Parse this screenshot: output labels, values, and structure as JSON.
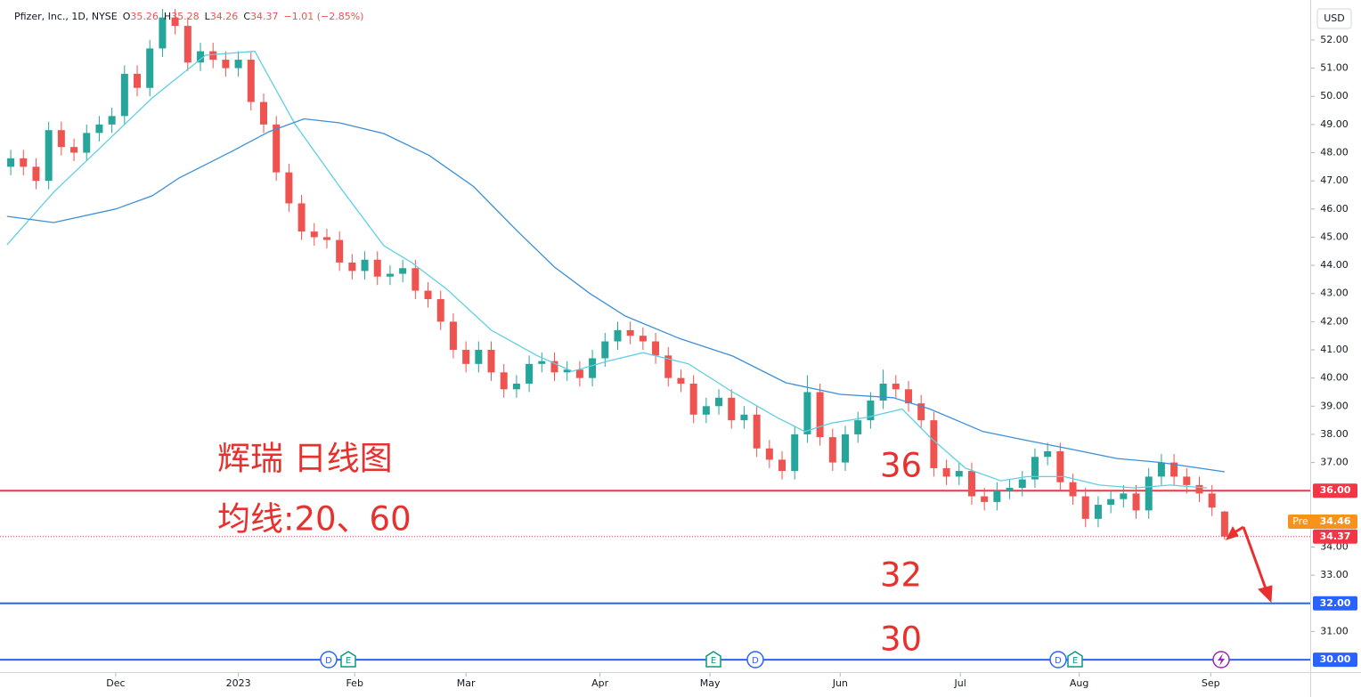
{
  "chart_data": {
    "type": "candlestick",
    "title": "Pfizer, Inc., 1D, NYSE",
    "ohlc_labels": [
      "O",
      "H",
      "L",
      "C"
    ],
    "change_label": "−1.01 (−2.85%)",
    "currency": "USD",
    "up_color": "#26a69a",
    "down_color": "#ef5350",
    "open": [
      47.5,
      47.8,
      47.5,
      47.0,
      48.8,
      48.2,
      48.0,
      48.7,
      49.0,
      49.3,
      50.8,
      50.3,
      51.7,
      52.8,
      52.5,
      51.2,
      51.6,
      51.3,
      51.0,
      51.3,
      49.8,
      49.0,
      47.3,
      46.2,
      45.2,
      45.0,
      44.9,
      44.1,
      43.8,
      44.2,
      43.6,
      43.7,
      43.9,
      43.1,
      42.8,
      42.0,
      41.0,
      40.5,
      41.0,
      40.2,
      39.6,
      39.8,
      40.5,
      40.6,
      40.2,
      40.3,
      40.0,
      40.7,
      41.3,
      41.7,
      41.5,
      41.3,
      40.8,
      40.0,
      39.8,
      38.7,
      39.0,
      39.3,
      38.5,
      38.7,
      37.5,
      37.1,
      36.7,
      38.0,
      39.5,
      37.9,
      37.0,
      38.0,
      38.5,
      39.2,
      39.8,
      39.6,
      39.1,
      38.5,
      36.8,
      36.5,
      36.7,
      35.8,
      35.6,
      36.0,
      36.1,
      36.4,
      37.2,
      37.4,
      36.3,
      35.8,
      35.0,
      35.5,
      35.7,
      35.9,
      35.3,
      36.5,
      37.0,
      36.5,
      36.2,
      35.9,
      35.26
    ],
    "high": [
      48.1,
      48.1,
      47.8,
      49.1,
      49.1,
      48.5,
      49.0,
      49.3,
      49.6,
      51.1,
      51.1,
      52.0,
      53.1,
      53.1,
      52.8,
      51.9,
      51.9,
      51.6,
      51.6,
      51.6,
      50.1,
      49.3,
      47.6,
      46.5,
      45.5,
      45.3,
      45.2,
      44.4,
      44.5,
      44.5,
      44.0,
      44.2,
      44.2,
      43.4,
      43.1,
      42.3,
      41.3,
      41.3,
      41.3,
      40.5,
      40.1,
      40.8,
      40.9,
      40.9,
      40.6,
      40.6,
      41.0,
      41.6,
      42.0,
      42.0,
      41.8,
      41.6,
      41.1,
      40.3,
      40.1,
      39.3,
      39.6,
      39.6,
      39.0,
      39.0,
      37.8,
      37.4,
      38.3,
      40.1,
      39.8,
      38.2,
      38.3,
      38.8,
      39.5,
      40.3,
      40.1,
      39.9,
      39.4,
      38.8,
      37.1,
      37.0,
      37.0,
      36.1,
      36.3,
      36.4,
      36.7,
      37.5,
      37.7,
      37.7,
      36.6,
      36.1,
      35.8,
      36.0,
      36.2,
      36.2,
      36.8,
      37.3,
      37.3,
      36.8,
      36.5,
      36.2,
      35.28
    ],
    "low": [
      47.2,
      47.2,
      46.7,
      46.7,
      47.9,
      47.7,
      47.7,
      48.4,
      48.7,
      49.0,
      50.0,
      50.0,
      51.4,
      52.2,
      50.9,
      50.9,
      51.0,
      50.7,
      50.7,
      49.5,
      48.7,
      47.0,
      45.9,
      44.9,
      44.7,
      44.6,
      43.8,
      43.5,
      43.5,
      43.3,
      43.3,
      43.4,
      42.8,
      42.5,
      41.7,
      40.7,
      40.2,
      40.2,
      39.9,
      39.3,
      39.3,
      39.5,
      40.2,
      39.9,
      39.9,
      39.7,
      39.7,
      40.4,
      41.0,
      41.2,
      41.0,
      40.5,
      39.7,
      39.5,
      38.4,
      38.4,
      38.7,
      38.2,
      38.2,
      37.2,
      36.8,
      36.4,
      36.4,
      37.7,
      37.6,
      36.7,
      36.7,
      37.7,
      38.2,
      38.9,
      39.3,
      38.8,
      38.2,
      36.5,
      36.2,
      36.2,
      35.5,
      35.3,
      35.3,
      35.7,
      35.8,
      36.1,
      36.9,
      36.0,
      35.5,
      34.7,
      34.7,
      35.2,
      35.4,
      35.0,
      35.0,
      36.2,
      36.2,
      35.9,
      35.6,
      35.1,
      34.26
    ],
    "close": [
      47.8,
      47.5,
      47.0,
      48.8,
      48.2,
      48.0,
      48.7,
      49.0,
      49.3,
      50.8,
      50.3,
      51.7,
      52.8,
      52.5,
      51.2,
      51.6,
      51.3,
      51.0,
      51.3,
      49.8,
      49.0,
      47.3,
      46.2,
      45.2,
      45.0,
      44.9,
      44.1,
      43.8,
      44.2,
      43.6,
      43.7,
      43.9,
      43.1,
      42.8,
      42.0,
      41.0,
      40.5,
      41.0,
      40.2,
      39.6,
      39.8,
      40.5,
      40.6,
      40.2,
      40.3,
      40.0,
      40.7,
      41.3,
      41.7,
      41.5,
      41.3,
      40.8,
      40.0,
      39.8,
      38.7,
      39.0,
      39.3,
      38.5,
      38.7,
      37.5,
      37.1,
      36.7,
      38.0,
      39.5,
      37.9,
      37.0,
      38.0,
      38.5,
      39.2,
      39.8,
      39.6,
      39.1,
      38.5,
      36.8,
      36.5,
      36.7,
      35.8,
      35.6,
      36.0,
      36.1,
      36.4,
      37.2,
      37.4,
      36.3,
      35.8,
      35.0,
      35.5,
      35.7,
      35.9,
      35.3,
      36.5,
      37.0,
      36.5,
      36.2,
      35.9,
      35.4,
      34.37
    ],
    "moving_averages": [
      {
        "color": "#5fcfe4",
        "x": [
          -0.3,
          3.4,
          7.6,
          11.2,
          15.4,
          19.3,
          20.4,
          22.5,
          26.0,
          29.5,
          31.7,
          34.5,
          38.0,
          41.6,
          44.4,
          47.2,
          50.0,
          53.6,
          57.1,
          60.6,
          62.8,
          64.9,
          67.7,
          70.5,
          72.7,
          75.5,
          78.3,
          80.4,
          83.3,
          86.1,
          88.9,
          91.7,
          94.6
        ],
        "values": [
          44.73,
          46.6,
          48.4,
          49.95,
          51.46,
          51.6,
          50.7,
          49.0,
          46.8,
          44.7,
          44.1,
          43.15,
          41.7,
          40.8,
          40.24,
          40.6,
          40.9,
          40.5,
          39.5,
          38.6,
          38.1,
          38.4,
          38.6,
          38.9,
          37.9,
          36.8,
          36.35,
          36.5,
          36.5,
          36.2,
          36.1,
          36.2,
          36.1
        ]
      },
      {
        "color": "#3b8fd9",
        "x": [
          -0.3,
          3.4,
          8.3,
          11.2,
          13.3,
          17.5,
          20.4,
          23.2,
          26.0,
          29.5,
          33.1,
          36.6,
          40.1,
          43.0,
          45.8,
          48.6,
          52.9,
          57.1,
          61.3,
          65.6,
          69.8,
          72.7,
          76.9,
          80.4,
          84.0,
          87.5,
          91.0,
          96.0
        ],
        "values": [
          45.74,
          45.52,
          46.0,
          46.47,
          47.1,
          48.05,
          48.74,
          49.2,
          49.06,
          48.68,
          47.9,
          46.8,
          45.2,
          43.94,
          43.0,
          42.2,
          41.4,
          40.78,
          39.83,
          39.42,
          39.3,
          38.9,
          38.1,
          37.78,
          37.46,
          37.14,
          37.0,
          36.67
        ]
      }
    ],
    "hlines": [
      {
        "value": 36,
        "label": "36.00",
        "color": "#f23645"
      },
      {
        "value": 32,
        "label": "32.00",
        "color": "#2962ff"
      },
      {
        "value": 30,
        "label": "30.00",
        "color": "#2962ff"
      }
    ],
    "last_price": 34.37,
    "last_color": "#f23645",
    "pre_label": "Pre",
    "pre_price": 34.46,
    "pre_color": "#f7931a",
    "annotations": [
      "辉瑞 日线图",
      "均线:20、60",
      "36",
      "32",
      "30"
    ],
    "annotation_color": "#e8312f",
    "events": [
      "D",
      "E",
      "E",
      "D",
      "D",
      "E"
    ],
    "xlim": [
      -0.85,
      102.7
    ],
    "ylim": [
      29.56,
      53.42
    ],
    "xticks": [
      {
        "value": 8.3,
        "label": "Dec"
      },
      {
        "value": 18.0,
        "label": "2023"
      },
      {
        "value": 27.2,
        "label": "Feb"
      },
      {
        "value": 36.0,
        "label": "Mar"
      },
      {
        "value": 46.6,
        "label": "Apr"
      },
      {
        "value": 55.3,
        "label": "May"
      },
      {
        "value": 65.6,
        "label": "Jun"
      },
      {
        "value": 75.1,
        "label": "Jul"
      },
      {
        "value": 84.5,
        "label": "Aug"
      },
      {
        "value": 94.9,
        "label": "Sep"
      }
    ],
    "yticks": [
      {
        "value": 31,
        "label": "31.00"
      },
      {
        "value": 33,
        "label": "33.00"
      },
      {
        "value": 34,
        "label": "34.00"
      },
      {
        "value": 35,
        "label": "35.00"
      },
      {
        "value": 37,
        "label": "37.00"
      },
      {
        "value": 38,
        "label": "38.00"
      },
      {
        "value": 39,
        "label": "39.00"
      },
      {
        "value": 40,
        "label": "40.00"
      },
      {
        "value": 41,
        "label": "41.00"
      },
      {
        "value": 42,
        "label": "42.00"
      },
      {
        "value": 43,
        "label": "43.00"
      },
      {
        "value": 44,
        "label": "44.00"
      },
      {
        "value": 45,
        "label": "45.00"
      },
      {
        "value": 46,
        "label": "46.00"
      },
      {
        "value": 47,
        "label": "47.00"
      },
      {
        "value": 48,
        "label": "48.00"
      },
      {
        "value": 49,
        "label": "49.00"
      },
      {
        "value": 50,
        "label": "50.00"
      },
      {
        "value": 51,
        "label": "51.00"
      },
      {
        "value": 52,
        "label": "52.00"
      }
    ]
  }
}
